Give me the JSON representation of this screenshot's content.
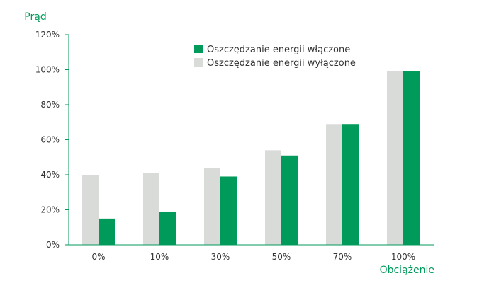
{
  "colors": {
    "on": "#009a5a",
    "off": "#d9dbd9",
    "axis": "#009a5a",
    "text": "#333333"
  },
  "chart_data": {
    "type": "bar",
    "categories": [
      "0%",
      "10%",
      "30%",
      "50%",
      "70%",
      "100%"
    ],
    "series": [
      {
        "name": "Oszczędzanie energii wyłączone",
        "values": [
          40,
          41,
          44,
          54,
          69,
          99
        ]
      },
      {
        "name": "Oszczędzanie energii włączone",
        "values": [
          15,
          19,
          39,
          51,
          69,
          99
        ]
      }
    ],
    "title": "",
    "xlabel": "Obciążenie",
    "ylabel": "Prąd",
    "ylim": [
      0,
      120
    ],
    "yticks": [
      0,
      20,
      40,
      60,
      80,
      100,
      120
    ],
    "ytick_labels": [
      "0%",
      "20%",
      "40%",
      "60%",
      "80%",
      "100%",
      "120%"
    ],
    "grid": false,
    "legend_position": "top",
    "legend_entries": [
      "Oszczędzanie energii włączone",
      "Oszczędzanie energii wyłączone"
    ]
  }
}
